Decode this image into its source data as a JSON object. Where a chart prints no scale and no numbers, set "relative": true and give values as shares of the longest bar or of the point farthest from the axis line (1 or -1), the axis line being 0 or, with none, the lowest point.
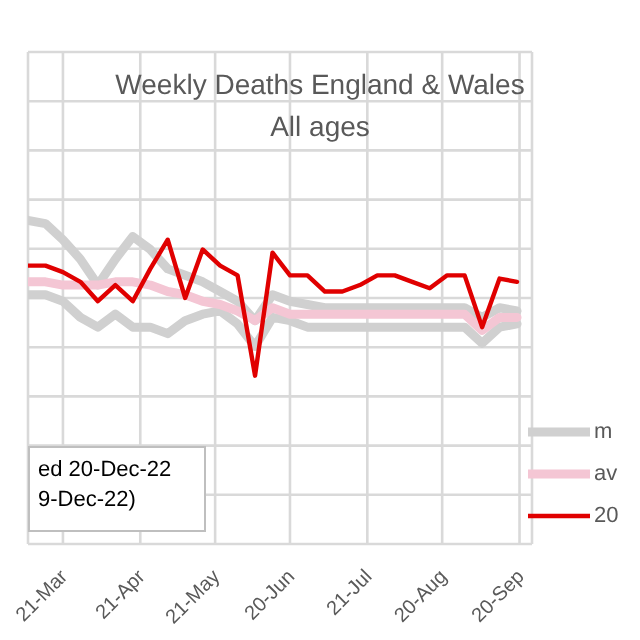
{
  "chart_data": {
    "type": "line",
    "title": "Weekly Deaths England & Wales",
    "subtitle": "All ages",
    "relative": true,
    "x": [
      "--03-07",
      "--03-14",
      "--03-21",
      "--03-28",
      "--04-04",
      "--04-11",
      "--04-18",
      "--04-25",
      "--05-02",
      "--05-09",
      "--05-16",
      "--05-23",
      "--05-30",
      "--06-06",
      "--06-13",
      "--06-20",
      "--06-27",
      "--07-04",
      "--07-11",
      "--07-18",
      "--07-25",
      "--08-01",
      "--08-08",
      "--08-15",
      "--08-22",
      "--08-29",
      "--09-05",
      "--09-12",
      "--09-19"
    ],
    "xlim": [
      "--03-07",
      "--09-25"
    ],
    "xticks": [
      {
        "value": "--03-21",
        "label": "21-Mar"
      },
      {
        "value": "--04-21",
        "label": "21-Apr"
      },
      {
        "value": "--05-21",
        "label": "21-May"
      },
      {
        "value": "--06-20",
        "label": "20-Jun"
      },
      {
        "value": "--07-21",
        "label": "21-Jul"
      },
      {
        "value": "--08-20",
        "label": "20-Aug"
      },
      {
        "value": "--09-20",
        "label": "20-Sep"
      }
    ],
    "series": [
      {
        "name": "m",
        "color": "#d0d0d0",
        "values": [
          1.0,
          0.99,
          0.94,
          0.88,
          0.8,
          0.88,
          0.95,
          0.91,
          0.85,
          0.83,
          0.81,
          0.78,
          0.75,
          0.69,
          0.77,
          0.75,
          0.74,
          0.73,
          0.73,
          0.73,
          0.73,
          0.73,
          0.73,
          0.73,
          0.73,
          0.73,
          0.7,
          0.73,
          0.72
        ]
      },
      {
        "color": "#d0d0d0",
        "values": [
          0.77,
          0.77,
          0.75,
          0.7,
          0.67,
          0.71,
          0.67,
          0.67,
          0.65,
          0.69,
          0.71,
          0.72,
          0.68,
          0.61,
          0.7,
          0.69,
          0.67,
          0.67,
          0.67,
          0.67,
          0.67,
          0.67,
          0.67,
          0.67,
          0.67,
          0.67,
          0.62,
          0.67,
          0.68
        ]
      },
      {
        "name": "av",
        "color": "#f4c6d4",
        "values": [
          0.81,
          0.81,
          0.8,
          0.8,
          0.8,
          0.81,
          0.81,
          0.8,
          0.78,
          0.77,
          0.75,
          0.74,
          0.72,
          0.69,
          0.73,
          0.71,
          0.71,
          0.71,
          0.71,
          0.71,
          0.71,
          0.71,
          0.71,
          0.71,
          0.71,
          0.71,
          0.66,
          0.7,
          0.7
        ]
      },
      {
        "name": "20",
        "color": "#e00000",
        "values": [
          0.86,
          0.86,
          0.84,
          0.81,
          0.75,
          0.8,
          0.75,
          0.85,
          0.94,
          0.76,
          0.91,
          0.86,
          0.83,
          0.52,
          0.9,
          0.83,
          0.83,
          0.78,
          0.78,
          0.8,
          0.83,
          0.83,
          0.81,
          0.79,
          0.83,
          0.83,
          0.67,
          0.82,
          0.81
        ]
      }
    ],
    "annotations": [
      "ed 20-Dec-22",
      "9-Dec-22)"
    ],
    "grid": true,
    "legend": "bottom right",
    "marker": "none",
    "line_style": "solid"
  }
}
